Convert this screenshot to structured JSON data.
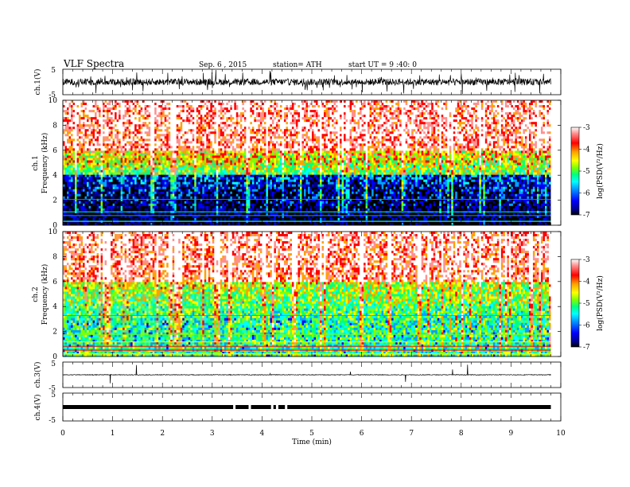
{
  "header": {
    "title": "VLF  Spectra",
    "date": "Sep. 6  , 2015",
    "station": "station= ATH",
    "start": "start  UT  =   9 :40: 0"
  },
  "colors": {
    "scale": [
      "#000000",
      "#00008c",
      "#0000ff",
      "#00a0ff",
      "#00ffff",
      "#00ff80",
      "#80ff00",
      "#ffff00",
      "#ffa000",
      "#ff0000",
      "#ff9090",
      "#ffffff"
    ]
  },
  "chart_data": [
    {
      "id": "ch1-waveform",
      "type": "line",
      "ylabel": "ch.1(V)",
      "yticks": [
        "5",
        "-5"
      ],
      "ylim": [
        -5,
        5
      ],
      "xlim": [
        0,
        9.8
      ]
    },
    {
      "id": "ch1-spectrogram",
      "type": "heatmap",
      "ylabel": "ch.1",
      "ylabel2": "Frequency  (kHz)",
      "yticks": [
        "0",
        "2",
        "4",
        "6",
        "8",
        "10"
      ],
      "ylim": [
        0,
        10
      ],
      "xlim": [
        0,
        9.8
      ],
      "colorbar": {
        "label": "log(PSD(V²/Hz)",
        "ticks": [
          "-3",
          "-4",
          "-5",
          "-6",
          "-7"
        ],
        "range": [
          -7,
          -3
        ]
      }
    },
    {
      "id": "ch2-spectrogram",
      "type": "heatmap",
      "ylabel": "ch.2",
      "ylabel2": "Frequency  (kHz)",
      "yticks": [
        "0",
        "2",
        "4",
        "6",
        "8",
        "10"
      ],
      "ylim": [
        0,
        10
      ],
      "xlim": [
        0,
        9.8
      ],
      "colorbar": {
        "label": "log(PSD(V²/Hz)",
        "ticks": [
          "-3",
          "-4",
          "-5",
          "-6",
          "-7"
        ],
        "range": [
          -7,
          -3
        ]
      }
    },
    {
      "id": "ch3-waveform",
      "type": "line",
      "ylabel": "ch.3(V)",
      "yticks": [
        "5",
        "-5"
      ],
      "ylim": [
        -5,
        5
      ],
      "xlim": [
        0,
        9.8
      ]
    },
    {
      "id": "ch4-waveform",
      "type": "line",
      "ylabel": "ch.4(V)",
      "yticks": [
        "5",
        "-5"
      ],
      "ylim": [
        -5,
        5
      ],
      "xlim": [
        0,
        9.8
      ],
      "gaps_min": [
        3.42,
        3.73,
        4.18,
        4.28,
        4.46
      ]
    }
  ],
  "xaxis": {
    "label": "Time  (min)",
    "ticks": [
      "0",
      "1",
      "2",
      "3",
      "4",
      "5",
      "6",
      "7",
      "8",
      "9",
      "10"
    ],
    "range": [
      0,
      10
    ]
  }
}
